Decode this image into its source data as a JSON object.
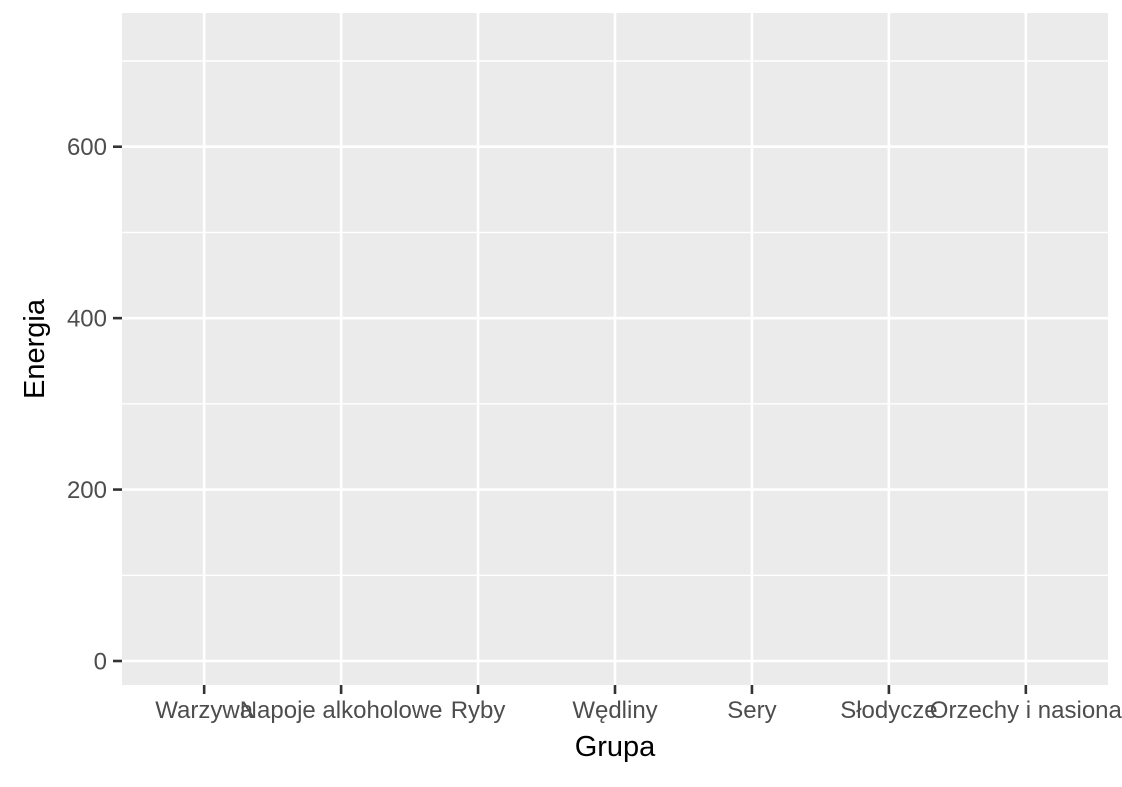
{
  "chart_data": {
    "type": "bar",
    "title": "",
    "xlabel": "Grupa",
    "ylabel": "Energia",
    "categories": [
      "Warzywa",
      "Napoje alkoholowe",
      "Ryby",
      "Wędliny",
      "Sery",
      "Słodycze",
      "Orzechy i nasiona"
    ],
    "values": [
      0,
      0,
      0,
      0,
      0,
      0,
      0
    ],
    "ylim": [
      -28,
      756
    ],
    "yticks": [
      0,
      200,
      400,
      600
    ],
    "ytick_labels": [
      "0",
      "200",
      "400",
      "600"
    ],
    "grid": true,
    "legend": "none",
    "colors": {
      "panel": "#ebebeb",
      "grid": "#ffffff",
      "tick": "#333333",
      "tick_label": "#4d4d4d",
      "axis_title": "#000000"
    }
  }
}
